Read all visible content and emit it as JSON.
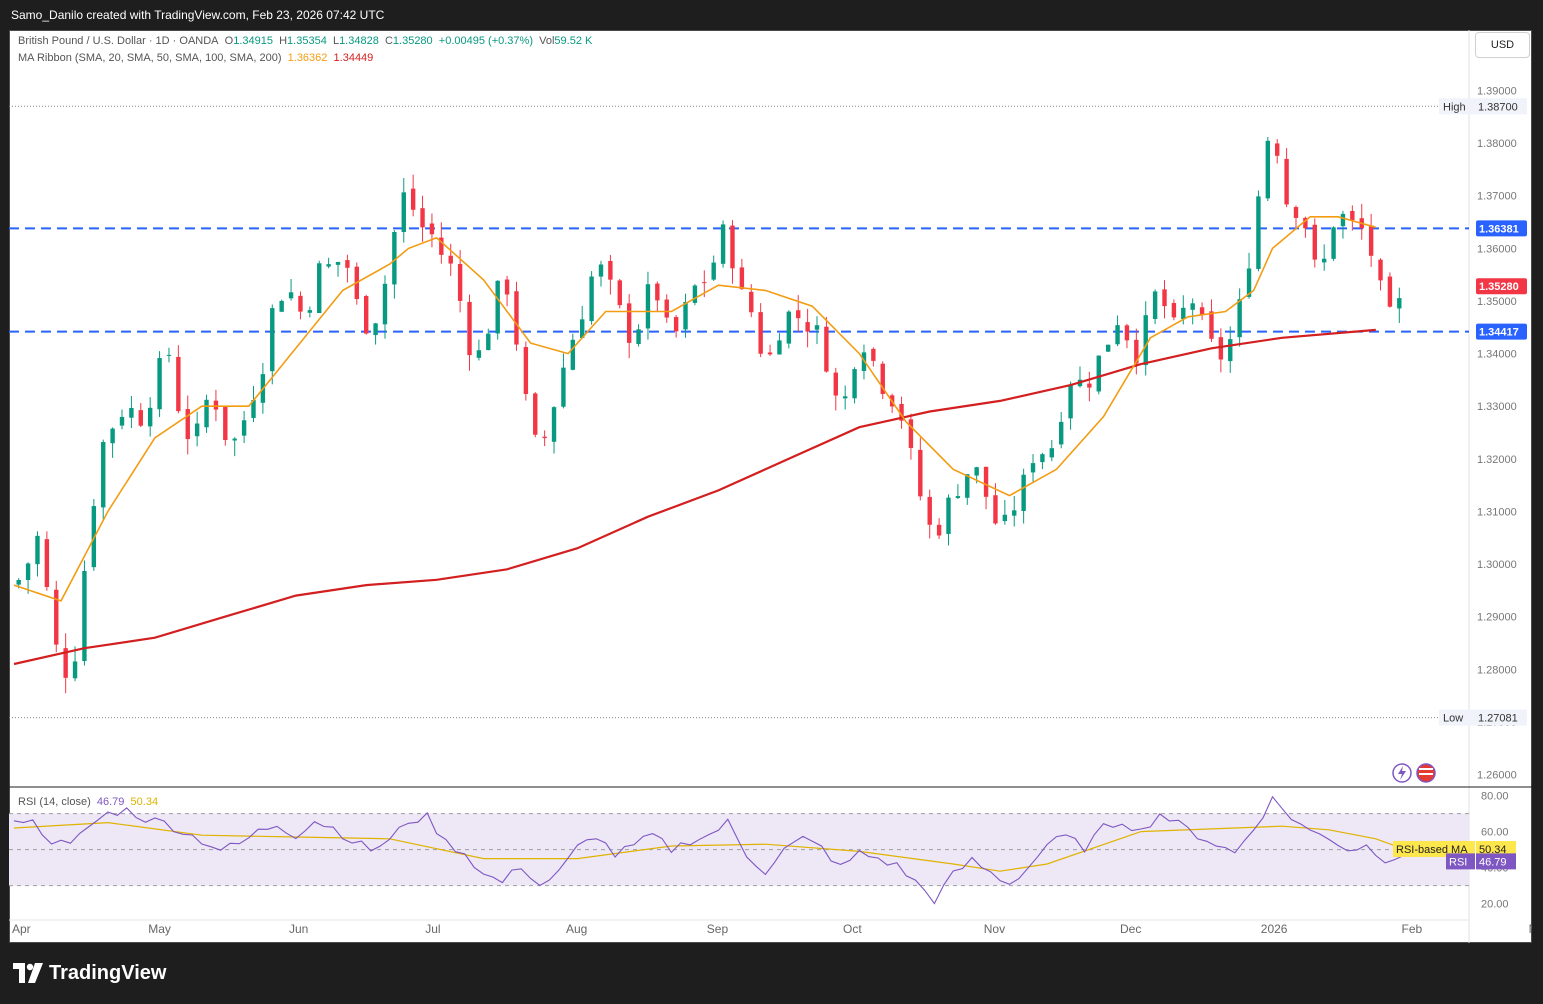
{
  "header": {
    "creator_line": "Samo_Danilo created with TradingView.com, Feb 23, 2026 07:42 UTC"
  },
  "legend": {
    "symbol": "British Pound / U.S. Dollar · 1D · OANDA",
    "o_label": "O",
    "o": "1.34915",
    "h_label": "H",
    "h": "1.35354",
    "l_label": "L",
    "l": "1.34828",
    "c_label": "C",
    "c": "1.35280",
    "change": "+0.00495 (+0.37%)",
    "vol_label": "Vol",
    "vol": "59.52 K",
    "ma_ribbon": "MA Ribbon (SMA, 20, SMA, 50, SMA, 100, SMA, 200)",
    "sma20_val": "1.36362",
    "sma200_val": "1.34449",
    "rsi_label": "RSI (14, close)",
    "rsi_val": "46.79",
    "rsi_ma_val": "50.34"
  },
  "currency_button": "USD",
  "footer": {
    "brand": "TradingView"
  },
  "colors": {
    "up": "#089981",
    "down": "#f23645",
    "sma20": "#f39c12",
    "sma200": "#d31f1f",
    "hline": "#2962ff",
    "rsi": "#7e57c2",
    "rsi_ma": "#e0b300",
    "rsi_band": "#ede7f6"
  },
  "chart_data": [
    {
      "type": "candlestick",
      "title": "British Pound / U.S. Dollar · 1D · OANDA",
      "y_axis": {
        "ticks": [
          "1.39000",
          "1.38000",
          "1.37000",
          "1.36000",
          "1.35000",
          "1.34000",
          "1.33000",
          "1.32000",
          "1.31000",
          "1.30000",
          "1.29000",
          "1.28000",
          "1.27000",
          "1.26000"
        ],
        "range": [
          1.258,
          1.392
        ]
      },
      "x_axis": {
        "ticks": [
          "Apr",
          "May",
          "Jun",
          "Jul",
          "Aug",
          "Sep",
          "Oct",
          "Nov",
          "Dec",
          "2026",
          "Feb",
          "Mar"
        ]
      },
      "horizontal_lines": [
        {
          "value": 1.36381,
          "label": "1.36381",
          "style": "dashed"
        },
        {
          "value": 1.34417,
          "label": "1.34417",
          "style": "dashed"
        }
      ],
      "markers": [
        {
          "name": "High",
          "value": 1.387,
          "label": "1.38700"
        },
        {
          "name": "Low",
          "value": 1.27081,
          "label": "1.27081"
        }
      ],
      "last_price": {
        "value": 1.3528,
        "label": "1.35280"
      },
      "close_path": [
        [
          0,
          1.296
        ],
        [
          2,
          1.298
        ],
        [
          5,
          1.305
        ],
        [
          8,
          1.29
        ],
        [
          10,
          1.278
        ],
        [
          13,
          1.283
        ],
        [
          16,
          1.307
        ],
        [
          19,
          1.323
        ],
        [
          22,
          1.328
        ],
        [
          24,
          1.33
        ],
        [
          28,
          1.327
        ],
        [
          30,
          1.336
        ],
        [
          33,
          1.34
        ],
        [
          35,
          1.33
        ],
        [
          38,
          1.322
        ],
        [
          40,
          1.328
        ],
        [
          42,
          1.334
        ],
        [
          44,
          1.327
        ],
        [
          46,
          1.322
        ],
        [
          48,
          1.325
        ],
        [
          50,
          1.33
        ],
        [
          53,
          1.338
        ],
        [
          55,
          1.348
        ],
        [
          58,
          1.353
        ],
        [
          60,
          1.35
        ],
        [
          62,
          1.346
        ],
        [
          64,
          1.354
        ],
        [
          66,
          1.358
        ],
        [
          68,
          1.355
        ],
        [
          70,
          1.36
        ],
        [
          72,
          1.353
        ],
        [
          74,
          1.346
        ],
        [
          76,
          1.345
        ],
        [
          78,
          1.349
        ],
        [
          80,
          1.358
        ],
        [
          82,
          1.368
        ],
        [
          84,
          1.372
        ],
        [
          86,
          1.363
        ],
        [
          88,
          1.365
        ],
        [
          90,
          1.36
        ],
        [
          92,
          1.358
        ],
        [
          94,
          1.355
        ],
        [
          96,
          1.345
        ],
        [
          98,
          1.338
        ],
        [
          100,
          1.342
        ],
        [
          102,
          1.348
        ],
        [
          104,
          1.356
        ],
        [
          106,
          1.349
        ],
        [
          108,
          1.336
        ],
        [
          110,
          1.326
        ],
        [
          112,
          1.32
        ],
        [
          114,
          1.328
        ],
        [
          116,
          1.333
        ],
        [
          118,
          1.342
        ],
        [
          120,
          1.344
        ],
        [
          122,
          1.352
        ],
        [
          124,
          1.357
        ],
        [
          126,
          1.355
        ],
        [
          128,
          1.35
        ],
        [
          130,
          1.346
        ],
        [
          132,
          1.341
        ],
        [
          134,
          1.35
        ],
        [
          136,
          1.353
        ],
        [
          138,
          1.349
        ],
        [
          140,
          1.341
        ],
        [
          142,
          1.347
        ],
        [
          144,
          1.35
        ],
        [
          146,
          1.355
        ],
        [
          148,
          1.353
        ],
        [
          150,
          1.362
        ],
        [
          152,
          1.364
        ],
        [
          154,
          1.352
        ],
        [
          156,
          1.35
        ],
        [
          158,
          1.346
        ],
        [
          160,
          1.336
        ],
        [
          162,
          1.343
        ],
        [
          164,
          1.346
        ],
        [
          166,
          1.349
        ],
        [
          168,
          1.345
        ],
        [
          170,
          1.346
        ],
        [
          172,
          1.342
        ],
        [
          174,
          1.335
        ],
        [
          176,
          1.328
        ],
        [
          178,
          1.335
        ],
        [
          180,
          1.343
        ],
        [
          182,
          1.341
        ],
        [
          184,
          1.336
        ],
        [
          186,
          1.332
        ],
        [
          188,
          1.331
        ],
        [
          190,
          1.325
        ],
        [
          192,
          1.316
        ],
        [
          194,
          1.31
        ],
        [
          196,
          1.304
        ],
        [
          198,
          1.31
        ],
        [
          200,
          1.313
        ],
        [
          202,
          1.316
        ],
        [
          204,
          1.319
        ],
        [
          206,
          1.316
        ],
        [
          208,
          1.31
        ],
        [
          210,
          1.306
        ],
        [
          212,
          1.309
        ],
        [
          214,
          1.313
        ],
        [
          216,
          1.318
        ],
        [
          218,
          1.323
        ],
        [
          220,
          1.32
        ],
        [
          222,
          1.325
        ],
        [
          224,
          1.333
        ],
        [
          226,
          1.337
        ],
        [
          228,
          1.332
        ],
        [
          230,
          1.338
        ],
        [
          232,
          1.34
        ],
        [
          234,
          1.345
        ],
        [
          236,
          1.348
        ],
        [
          238,
          1.339
        ],
        [
          240,
          1.341
        ],
        [
          242,
          1.35
        ],
        [
          244,
          1.352
        ],
        [
          246,
          1.346
        ],
        [
          248,
          1.344
        ],
        [
          250,
          1.352
        ],
        [
          252,
          1.348
        ],
        [
          254,
          1.343
        ],
        [
          256,
          1.34
        ],
        [
          258,
          1.339
        ],
        [
          260,
          1.346
        ],
        [
          262,
          1.352
        ],
        [
          264,
          1.364
        ],
        [
          266,
          1.376
        ],
        [
          268,
          1.386
        ],
        [
          270,
          1.372
        ],
        [
          272,
          1.366
        ],
        [
          274,
          1.369
        ],
        [
          276,
          1.36
        ],
        [
          278,
          1.353
        ],
        [
          280,
          1.362
        ],
        [
          282,
          1.368
        ],
        [
          284,
          1.364
        ],
        [
          286,
          1.365
        ],
        [
          288,
          1.362
        ],
        [
          290,
          1.356
        ],
        [
          292,
          1.348
        ],
        [
          294,
          1.346
        ],
        [
          296,
          1.3528
        ]
      ],
      "sma20": [
        [
          0,
          1.296
        ],
        [
          10,
          1.293
        ],
        [
          20,
          1.31
        ],
        [
          30,
          1.324
        ],
        [
          40,
          1.33
        ],
        [
          50,
          1.33
        ],
        [
          60,
          1.341
        ],
        [
          70,
          1.352
        ],
        [
          80,
          1.357
        ],
        [
          84,
          1.36
        ],
        [
          90,
          1.362
        ],
        [
          100,
          1.354
        ],
        [
          110,
          1.342
        ],
        [
          118,
          1.34
        ],
        [
          126,
          1.348
        ],
        [
          140,
          1.348
        ],
        [
          150,
          1.353
        ],
        [
          160,
          1.352
        ],
        [
          170,
          1.349
        ],
        [
          180,
          1.34
        ],
        [
          190,
          1.327
        ],
        [
          200,
          1.318
        ],
        [
          212,
          1.313
        ],
        [
          222,
          1.318
        ],
        [
          232,
          1.328
        ],
        [
          242,
          1.343
        ],
        [
          250,
          1.347
        ],
        [
          258,
          1.348
        ],
        [
          264,
          1.352
        ],
        [
          268,
          1.36
        ],
        [
          276,
          1.366
        ],
        [
          282,
          1.366
        ],
        [
          290,
          1.364
        ]
      ],
      "sma200": [
        [
          0,
          1.281
        ],
        [
          15,
          1.284
        ],
        [
          30,
          1.286
        ],
        [
          45,
          1.29
        ],
        [
          60,
          1.294
        ],
        [
          75,
          1.296
        ],
        [
          90,
          1.297
        ],
        [
          105,
          1.299
        ],
        [
          120,
          1.303
        ],
        [
          135,
          1.309
        ],
        [
          150,
          1.314
        ],
        [
          165,
          1.32
        ],
        [
          180,
          1.326
        ],
        [
          195,
          1.329
        ],
        [
          210,
          1.331
        ],
        [
          225,
          1.334
        ],
        [
          240,
          1.338
        ],
        [
          255,
          1.341
        ],
        [
          270,
          1.343
        ],
        [
          290,
          1.3445
        ]
      ]
    },
    {
      "type": "line",
      "title": "RSI (14, close)",
      "y_axis": {
        "ticks": [
          "80.00",
          "60.00",
          "40.00",
          "20.00"
        ],
        "range": [
          12,
          82
        ],
        "bands": [
          70,
          50,
          30
        ]
      },
      "series": [
        {
          "name": "RSI",
          "last": 46.79,
          "label": "46.79",
          "values": [
            [
              0,
              68
            ],
            [
              4,
              65
            ],
            [
              8,
              55
            ],
            [
              12,
              52
            ],
            [
              16,
              63
            ],
            [
              20,
              70
            ],
            [
              24,
              72
            ],
            [
              28,
              67
            ],
            [
              32,
              65
            ],
            [
              36,
              60
            ],
            [
              40,
              55
            ],
            [
              44,
              50
            ],
            [
              48,
              53
            ],
            [
              52,
              60
            ],
            [
              56,
              64
            ],
            [
              60,
              58
            ],
            [
              64,
              66
            ],
            [
              68,
              62
            ],
            [
              72,
              55
            ],
            [
              76,
              50
            ],
            [
              80,
              55
            ],
            [
              84,
              66
            ],
            [
              88,
              68
            ],
            [
              92,
              54
            ],
            [
              96,
              48
            ],
            [
              100,
              36
            ],
            [
              104,
              32
            ],
            [
              108,
              41
            ],
            [
              112,
              30
            ],
            [
              116,
              37
            ],
            [
              120,
              51
            ],
            [
              124,
              58
            ],
            [
              128,
              47
            ],
            [
              132,
              52
            ],
            [
              136,
              58
            ],
            [
              140,
              50
            ],
            [
              144,
              55
            ],
            [
              148,
              58
            ],
            [
              152,
              65
            ],
            [
              156,
              47
            ],
            [
              160,
              38
            ],
            [
              164,
              50
            ],
            [
              168,
              56
            ],
            [
              172,
              51
            ],
            [
              176,
              40
            ],
            [
              180,
              48
            ],
            [
              184,
              45
            ],
            [
              188,
              41
            ],
            [
              192,
              32
            ],
            [
              196,
              22
            ],
            [
              200,
              36
            ],
            [
              204,
              44
            ],
            [
              208,
              37
            ],
            [
              212,
              31
            ],
            [
              216,
              40
            ],
            [
              220,
              53
            ],
            [
              224,
              57
            ],
            [
              228,
              51
            ],
            [
              232,
              62
            ],
            [
              236,
              66
            ],
            [
              240,
              60
            ],
            [
              244,
              70
            ],
            [
              248,
              64
            ],
            [
              252,
              58
            ],
            [
              256,
              53
            ],
            [
              260,
              48
            ],
            [
              264,
              62
            ],
            [
              268,
              78
            ],
            [
              272,
              68
            ],
            [
              276,
              60
            ],
            [
              280,
              57
            ],
            [
              284,
              50
            ],
            [
              288,
              52
            ],
            [
              292,
              45
            ],
            [
              296,
              46.79
            ]
          ]
        },
        {
          "name": "RSI-based MA",
          "last": 50.34,
          "label": "50.34",
          "values": [
            [
              0,
              62
            ],
            [
              20,
              65
            ],
            [
              40,
              58
            ],
            [
              60,
              57
            ],
            [
              80,
              56
            ],
            [
              100,
              45
            ],
            [
              120,
              45
            ],
            [
              140,
              52
            ],
            [
              160,
              53
            ],
            [
              180,
              49
            ],
            [
              200,
              42
            ],
            [
              210,
              38
            ],
            [
              220,
              42
            ],
            [
              240,
              60
            ],
            [
              260,
              62
            ],
            [
              270,
              63
            ],
            [
              280,
              61
            ],
            [
              290,
              56
            ],
            [
              296,
              50.34
            ]
          ]
        }
      ]
    }
  ]
}
